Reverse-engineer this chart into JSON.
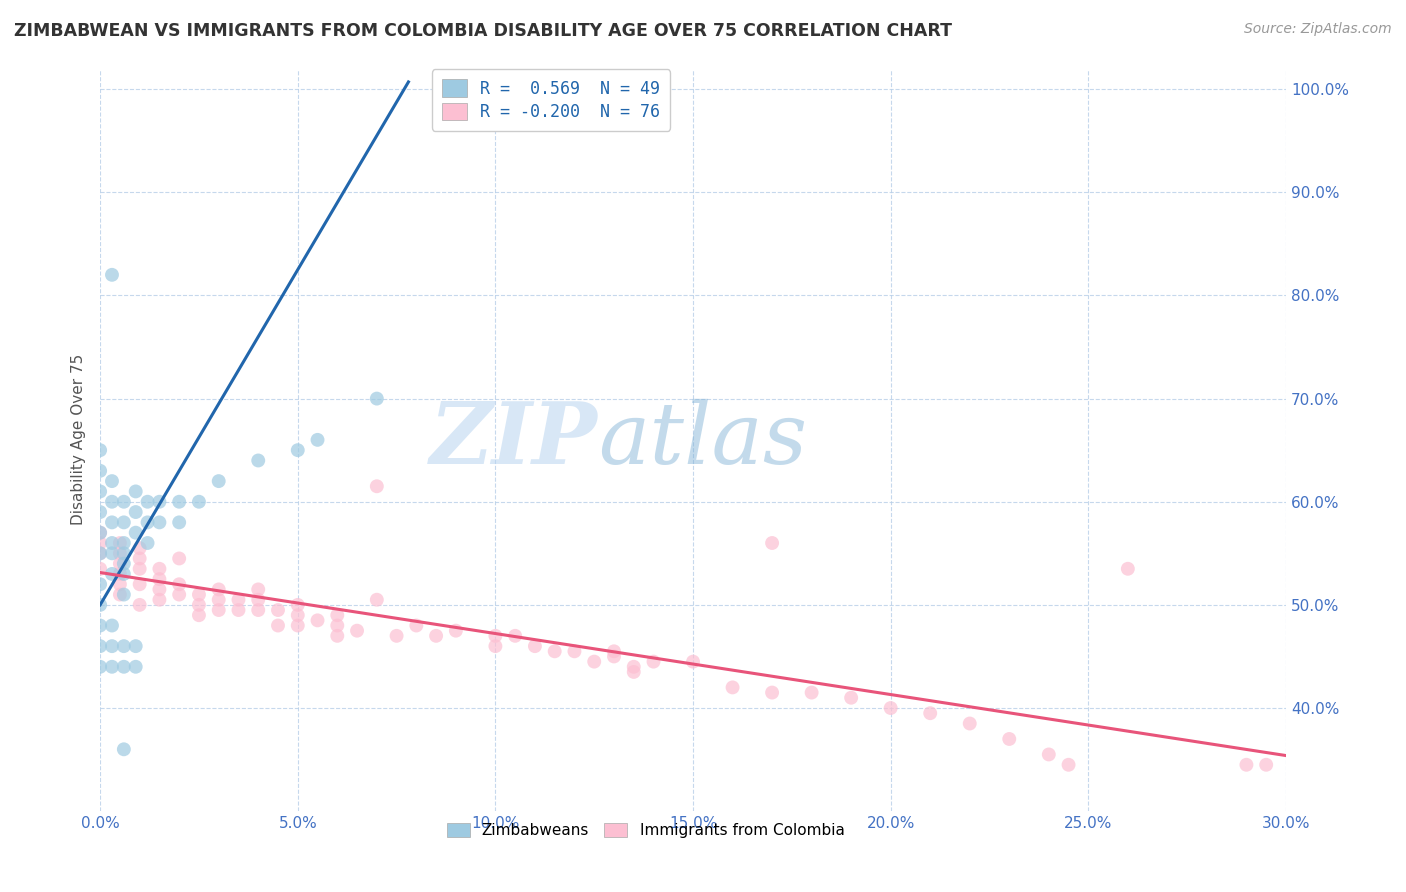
{
  "title": "ZIMBABWEAN VS IMMIGRANTS FROM COLOMBIA DISABILITY AGE OVER 75 CORRELATION CHART",
  "source": "Source: ZipAtlas.com",
  "ylabel": "Disability Age Over 75",
  "xlim": [
    0.0,
    0.3
  ],
  "ylim": [
    0.3,
    1.02
  ],
  "xticks": [
    0.0,
    0.05,
    0.1,
    0.15,
    0.2,
    0.25,
    0.3
  ],
  "yticks": [
    0.4,
    0.5,
    0.6,
    0.7,
    0.8,
    0.9,
    1.0
  ],
  "ytick_labels": [
    "40.0%",
    "50.0%",
    "60.0%",
    "70.0%",
    "80.0%",
    "90.0%",
    "100.0%"
  ],
  "xtick_labels": [
    "0.0%",
    "5.0%",
    "10.0%",
    "15.0%",
    "20.0%",
    "25.0%",
    "30.0%"
  ],
  "legend_r1": "R =  0.569  N = 49",
  "legend_r2": "R = -0.200  N = 76",
  "color_blue": "#9ecae1",
  "color_pink": "#fcbfd2",
  "line_blue": "#2166ac",
  "line_pink": "#e8547a",
  "watermark_zip": "ZIP",
  "watermark_atlas": "atlas",
  "zimbabwean_x": [
    0.0,
    0.0,
    0.0,
    0.0,
    0.0,
    0.0,
    0.0,
    0.0,
    0.003,
    0.003,
    0.003,
    0.003,
    0.003,
    0.003,
    0.006,
    0.006,
    0.006,
    0.006,
    0.006,
    0.006,
    0.006,
    0.009,
    0.009,
    0.009,
    0.012,
    0.012,
    0.012,
    0.015,
    0.015,
    0.02,
    0.02,
    0.025,
    0.03,
    0.04,
    0.05,
    0.055,
    0.07,
    0.0,
    0.0,
    0.0,
    0.003,
    0.003,
    0.003,
    0.006,
    0.006,
    0.009,
    0.009,
    0.003,
    0.006
  ],
  "zimbabwean_y": [
    0.55,
    0.57,
    0.59,
    0.61,
    0.63,
    0.65,
    0.5,
    0.52,
    0.56,
    0.58,
    0.6,
    0.62,
    0.53,
    0.55,
    0.54,
    0.56,
    0.58,
    0.6,
    0.51,
    0.53,
    0.55,
    0.57,
    0.59,
    0.61,
    0.56,
    0.58,
    0.6,
    0.58,
    0.6,
    0.58,
    0.6,
    0.6,
    0.62,
    0.64,
    0.65,
    0.66,
    0.7,
    0.46,
    0.48,
    0.44,
    0.46,
    0.44,
    0.48,
    0.44,
    0.46,
    0.44,
    0.46,
    0.82,
    0.36
  ],
  "colombia_x": [
    0.0,
    0.0,
    0.0,
    0.0,
    0.005,
    0.005,
    0.005,
    0.005,
    0.005,
    0.005,
    0.01,
    0.01,
    0.01,
    0.01,
    0.01,
    0.015,
    0.015,
    0.015,
    0.015,
    0.02,
    0.02,
    0.02,
    0.025,
    0.025,
    0.025,
    0.03,
    0.03,
    0.03,
    0.035,
    0.035,
    0.04,
    0.04,
    0.04,
    0.045,
    0.045,
    0.05,
    0.05,
    0.05,
    0.055,
    0.06,
    0.06,
    0.06,
    0.065,
    0.07,
    0.07,
    0.075,
    0.08,
    0.085,
    0.09,
    0.1,
    0.1,
    0.105,
    0.11,
    0.115,
    0.12,
    0.125,
    0.13,
    0.13,
    0.135,
    0.135,
    0.14,
    0.15,
    0.16,
    0.17,
    0.17,
    0.18,
    0.19,
    0.2,
    0.21,
    0.22,
    0.23,
    0.24,
    0.245,
    0.26,
    0.29,
    0.295
  ],
  "colombia_y": [
    0.535,
    0.55,
    0.56,
    0.57,
    0.52,
    0.53,
    0.54,
    0.55,
    0.56,
    0.51,
    0.52,
    0.535,
    0.545,
    0.555,
    0.5,
    0.525,
    0.535,
    0.515,
    0.505,
    0.52,
    0.51,
    0.545,
    0.51,
    0.5,
    0.49,
    0.505,
    0.515,
    0.495,
    0.495,
    0.505,
    0.495,
    0.505,
    0.515,
    0.48,
    0.495,
    0.48,
    0.49,
    0.5,
    0.485,
    0.47,
    0.48,
    0.49,
    0.475,
    0.505,
    0.615,
    0.47,
    0.48,
    0.47,
    0.475,
    0.46,
    0.47,
    0.47,
    0.46,
    0.455,
    0.455,
    0.445,
    0.45,
    0.455,
    0.44,
    0.435,
    0.445,
    0.445,
    0.42,
    0.415,
    0.56,
    0.415,
    0.41,
    0.4,
    0.395,
    0.385,
    0.37,
    0.355,
    0.345,
    0.535,
    0.345,
    0.345
  ]
}
